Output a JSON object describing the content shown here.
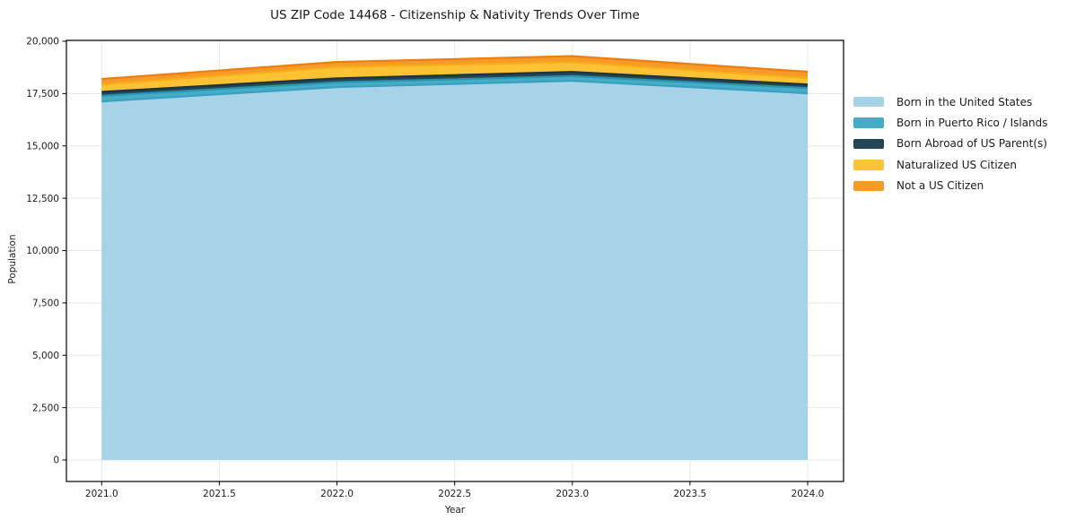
{
  "title": "US ZIP Code 14468 - Citizenship & Nativity Trends Over Time",
  "chart_data": {
    "type": "area",
    "stacked": true,
    "title": "US ZIP Code 14468 - Citizenship & Nativity Trends Over Time",
    "xlabel": "Year",
    "ylabel": "Population",
    "x": [
      2021,
      2022,
      2023,
      2024
    ],
    "series": [
      {
        "name": "Born in the United States",
        "values": [
          17125,
          17810,
          18110,
          17510
        ],
        "fill": "#a6d3e8",
        "edge": "#3aa0bf"
      },
      {
        "name": "Born in Puerto Rico / Islands",
        "values": [
          270,
          230,
          225,
          255
        ],
        "fill": "#45adc7",
        "edge": "#2b93ae"
      },
      {
        "name": "Born Abroad of US Parent(s)",
        "values": [
          185,
          185,
          200,
          170
        ],
        "fill": "#234655",
        "edge": "#1a3541"
      },
      {
        "name": "Naturalized US Citizen",
        "values": [
          360,
          540,
          470,
          310
        ],
        "fill": "#fdc233",
        "edge": "#f6ad19"
      },
      {
        "name": "Not a US Citizen",
        "values": [
          255,
          245,
          285,
          300
        ],
        "fill": "#f89a28",
        "edge": "#ee7d10"
      }
    ],
    "x_ticks": {
      "values": [
        2021.0,
        2021.5,
        2022.0,
        2022.5,
        2023.0,
        2023.5,
        2024.0
      ],
      "labels": [
        "2021.0",
        "2021.5",
        "2022.0",
        "2022.5",
        "2023.0",
        "2023.5",
        "2024.0"
      ]
    },
    "y_ticks": {
      "values": [
        0,
        2500,
        5000,
        7500,
        10000,
        12500,
        15000,
        17500,
        20000
      ],
      "labels": [
        "0",
        "2,500",
        "5,000",
        "7,500",
        "10,000",
        "12,500",
        "15,000",
        "17,500",
        "20,000"
      ]
    },
    "ylim": [
      0,
      20000
    ],
    "grid": true,
    "grid_color": "#e8e8e8",
    "spine_color": "#000000",
    "legend_position": "right"
  }
}
